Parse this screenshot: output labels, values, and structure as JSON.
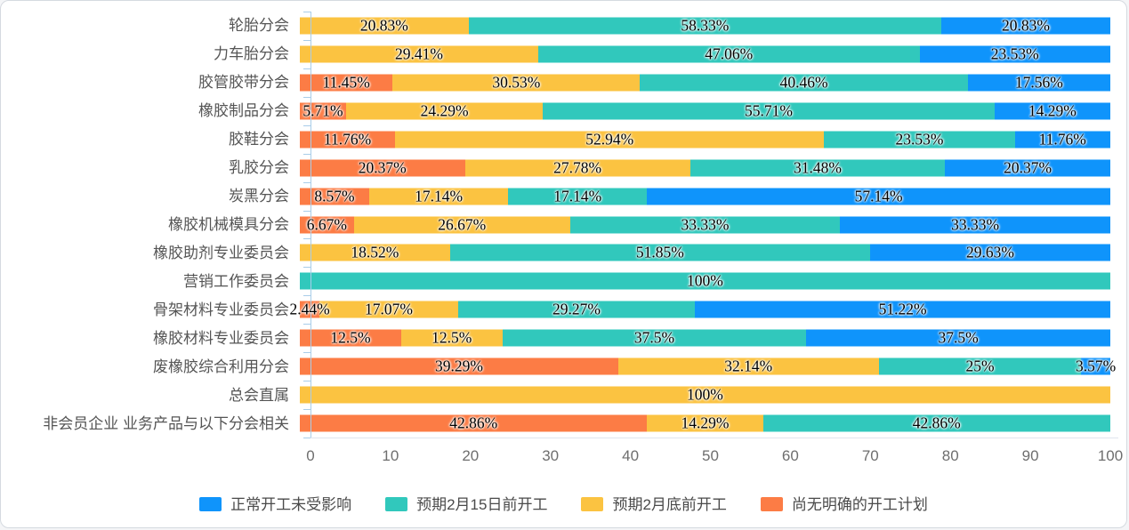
{
  "chart_data": {
    "type": "bar",
    "orientation": "horizontal",
    "stacked": true,
    "unit": "%",
    "grid": false,
    "legend_position": "bottom",
    "xlim": [
      0,
      101
    ],
    "x_ticks": [
      0,
      10,
      20,
      30,
      40,
      50,
      60,
      70,
      80,
      90,
      100
    ],
    "categories": [
      "轮胎分会",
      "力车胎分会",
      "胶管胶带分会",
      "橡胶制品分会",
      "胶鞋分会",
      "乳胶分会",
      "炭黑分会",
      "橡胶机械模具分会",
      "橡胶助剂专业委员会",
      "营销工作委员会",
      "骨架材料专业委员会",
      "橡胶材料专业委员会",
      "废橡胶综合利用分会",
      "总会直属",
      "非会员企业 业务产品与以下分会相关"
    ],
    "series": [
      {
        "name": "尚无明确的开工计划",
        "color": "#FC7C45",
        "values": [
          null,
          null,
          11.45,
          5.71,
          11.76,
          20.37,
          8.57,
          6.67,
          null,
          null,
          2.44,
          12.5,
          39.29,
          null,
          42.86
        ]
      },
      {
        "name": "预期2月底前开工",
        "color": "#FBC341",
        "values": [
          20.83,
          29.41,
          30.53,
          24.29,
          52.94,
          27.78,
          17.14,
          26.67,
          18.52,
          null,
          17.07,
          12.5,
          32.14,
          100,
          14.29
        ]
      },
      {
        "name": "预期2月15日前开工",
        "color": "#31C8BC",
        "values": [
          58.33,
          47.06,
          40.46,
          55.71,
          23.53,
          31.48,
          17.14,
          33.33,
          51.85,
          100,
          29.27,
          37.5,
          25,
          null,
          42.86
        ]
      },
      {
        "name": "正常开工未受影响",
        "color": "#0F94FB",
        "values": [
          20.83,
          23.53,
          17.56,
          14.29,
          11.76,
          20.37,
          57.14,
          33.33,
          29.63,
          null,
          51.22,
          37.5,
          3.57,
          null,
          null
        ]
      }
    ],
    "legend": [
      {
        "label": "正常开工未受影响",
        "color": "#0F94FB"
      },
      {
        "label": "预期2月15日前开工",
        "color": "#31C8BC"
      },
      {
        "label": "预期2月底前开工",
        "color": "#FBC341"
      },
      {
        "label": "尚无明确的开工计划",
        "color": "#FC7C45"
      }
    ]
  },
  "colors": {
    "axis_line": "#a9cde9",
    "x_axis_line": "#dfe5ee",
    "category_label": "#555555",
    "tick_label": "#6e6e6e",
    "legend_label": "#4a4a4a",
    "card_border": "#d5dae0",
    "background": "#ffffff"
  }
}
